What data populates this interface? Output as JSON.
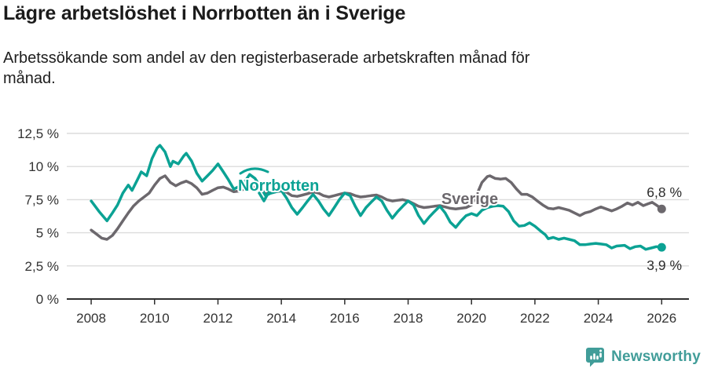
{
  "header": {
    "title": "Lägre arbetslöshet i Norrbotten än i Sverige",
    "subtitle_lines": [
      "Arbetssökande som andel av den registerbaserade arbetskraften månad för",
      "månad."
    ]
  },
  "footer": {
    "brand": "Newsworthy",
    "brand_color": "#419d99",
    "logo_icon": "bar-chart-speech-bubble-icon"
  },
  "colors": {
    "norrbotten": "#0ba294",
    "sverige": "#6c686d",
    "grid": "#dcdcdc",
    "axis": "#2f2f2f",
    "tick_text": "#333333",
    "background": "#ffffff"
  },
  "chart_data": {
    "type": "line",
    "title": "Lägre arbetslöshet i Norrbotten än i Sverige",
    "subtitle": "Arbetssökande som andel av den registerbaserade arbetskraften månad för månad.",
    "unit": "%",
    "xlabel": "",
    "ylabel": "",
    "grid": "horizontal",
    "x_range": [
      2007.23,
      2026.86
    ],
    "y_range": [
      0,
      12.5
    ],
    "y_ticks": {
      "values": [
        0,
        2.5,
        5,
        7.5,
        10,
        12.5
      ],
      "labels": [
        "0 %",
        "2,5 %",
        "5 %",
        "7,5 %",
        "10 %",
        "12,5 %"
      ]
    },
    "x_ticks": {
      "values": [
        2008,
        2010,
        2012,
        2014,
        2016,
        2018,
        2020,
        2022,
        2024,
        2026
      ],
      "labels": [
        "2008",
        "2010",
        "2012",
        "2014",
        "2016",
        "2018",
        "2020",
        "2022",
        "2024",
        "2026"
      ]
    },
    "series": [
      {
        "name": "Sverige",
        "color": "#6c686d",
        "end_label": "6,8 %",
        "end_value": 6.8,
        "points": [
          [
            2008.0,
            5.2
          ],
          [
            2008.17,
            4.9
          ],
          [
            2008.33,
            4.6
          ],
          [
            2008.5,
            4.5
          ],
          [
            2008.67,
            4.8
          ],
          [
            2008.83,
            5.3
          ],
          [
            2009.0,
            5.9
          ],
          [
            2009.17,
            6.5
          ],
          [
            2009.33,
            7.0
          ],
          [
            2009.5,
            7.4
          ],
          [
            2009.67,
            7.7
          ],
          [
            2009.83,
            8.0
          ],
          [
            2010.0,
            8.6
          ],
          [
            2010.17,
            9.1
          ],
          [
            2010.33,
            9.3
          ],
          [
            2010.5,
            8.8
          ],
          [
            2010.67,
            8.55
          ],
          [
            2010.83,
            8.75
          ],
          [
            2011.0,
            8.9
          ],
          [
            2011.17,
            8.7
          ],
          [
            2011.33,
            8.4
          ],
          [
            2011.5,
            7.9
          ],
          [
            2011.67,
            8.0
          ],
          [
            2011.83,
            8.2
          ],
          [
            2012.0,
            8.4
          ],
          [
            2012.17,
            8.45
          ],
          [
            2012.33,
            8.3
          ],
          [
            2012.5,
            8.1
          ],
          [
            2012.67,
            8.15
          ],
          [
            2012.83,
            8.3
          ],
          [
            2013.0,
            8.45
          ],
          [
            2013.17,
            8.4
          ],
          [
            2013.33,
            8.25
          ],
          [
            2013.5,
            8.0
          ],
          [
            2013.67,
            8.0
          ],
          [
            2013.83,
            8.1
          ],
          [
            2014.0,
            8.15
          ],
          [
            2014.17,
            8.05
          ],
          [
            2014.33,
            7.8
          ],
          [
            2014.5,
            7.75
          ],
          [
            2014.67,
            7.85
          ],
          [
            2014.83,
            7.95
          ],
          [
            2015.0,
            8.1
          ],
          [
            2015.17,
            8.0
          ],
          [
            2015.33,
            7.8
          ],
          [
            2015.5,
            7.7
          ],
          [
            2015.67,
            7.8
          ],
          [
            2015.83,
            7.9
          ],
          [
            2016.0,
            8.0
          ],
          [
            2016.17,
            7.95
          ],
          [
            2016.33,
            7.8
          ],
          [
            2016.5,
            7.7
          ],
          [
            2016.67,
            7.75
          ],
          [
            2016.83,
            7.8
          ],
          [
            2017.0,
            7.85
          ],
          [
            2017.17,
            7.7
          ],
          [
            2017.33,
            7.5
          ],
          [
            2017.5,
            7.4
          ],
          [
            2017.67,
            7.45
          ],
          [
            2017.83,
            7.5
          ],
          [
            2018.0,
            7.4
          ],
          [
            2018.17,
            7.2
          ],
          [
            2018.33,
            7.0
          ],
          [
            2018.5,
            6.9
          ],
          [
            2018.67,
            6.95
          ],
          [
            2018.83,
            7.0
          ],
          [
            2019.0,
            7.05
          ],
          [
            2019.17,
            6.95
          ],
          [
            2019.33,
            6.85
          ],
          [
            2019.5,
            6.8
          ],
          [
            2019.67,
            6.85
          ],
          [
            2019.83,
            6.9
          ],
          [
            2020.0,
            7.1
          ],
          [
            2020.17,
            7.9
          ],
          [
            2020.33,
            8.8
          ],
          [
            2020.5,
            9.25
          ],
          [
            2020.58,
            9.3
          ],
          [
            2020.75,
            9.1
          ],
          [
            2020.92,
            9.05
          ],
          [
            2021.08,
            9.1
          ],
          [
            2021.25,
            8.8
          ],
          [
            2021.42,
            8.3
          ],
          [
            2021.58,
            7.9
          ],
          [
            2021.75,
            7.9
          ],
          [
            2021.92,
            7.7
          ],
          [
            2022.08,
            7.4
          ],
          [
            2022.25,
            7.1
          ],
          [
            2022.42,
            6.85
          ],
          [
            2022.58,
            6.8
          ],
          [
            2022.75,
            6.9
          ],
          [
            2022.92,
            6.8
          ],
          [
            2023.08,
            6.7
          ],
          [
            2023.25,
            6.5
          ],
          [
            2023.42,
            6.3
          ],
          [
            2023.58,
            6.5
          ],
          [
            2023.75,
            6.6
          ],
          [
            2023.92,
            6.8
          ],
          [
            2024.08,
            6.95
          ],
          [
            2024.25,
            6.8
          ],
          [
            2024.42,
            6.65
          ],
          [
            2024.58,
            6.8
          ],
          [
            2024.75,
            7.0
          ],
          [
            2024.92,
            7.25
          ],
          [
            2025.08,
            7.1
          ],
          [
            2025.25,
            7.3
          ],
          [
            2025.42,
            7.05
          ],
          [
            2025.58,
            7.2
          ],
          [
            2025.7,
            7.3
          ],
          [
            2025.83,
            7.1
          ],
          [
            2026.0,
            6.8
          ]
        ]
      },
      {
        "name": "Norrbotten",
        "color": "#0ba294",
        "end_label": "3,9 %",
        "end_value": 3.9,
        "points": [
          [
            2008.0,
            7.4
          ],
          [
            2008.08,
            7.15
          ],
          [
            2008.25,
            6.6
          ],
          [
            2008.5,
            5.9
          ],
          [
            2008.67,
            6.5
          ],
          [
            2008.83,
            7.1
          ],
          [
            2009.0,
            8.0
          ],
          [
            2009.17,
            8.6
          ],
          [
            2009.29,
            8.2
          ],
          [
            2009.5,
            9.2
          ],
          [
            2009.58,
            9.6
          ],
          [
            2009.75,
            9.3
          ],
          [
            2009.92,
            10.6
          ],
          [
            2010.08,
            11.4
          ],
          [
            2010.17,
            11.6
          ],
          [
            2010.33,
            11.1
          ],
          [
            2010.5,
            10.0
          ],
          [
            2010.58,
            10.4
          ],
          [
            2010.75,
            10.2
          ],
          [
            2010.92,
            10.8
          ],
          [
            2011.0,
            11.0
          ],
          [
            2011.17,
            10.4
          ],
          [
            2011.33,
            9.5
          ],
          [
            2011.5,
            8.9
          ],
          [
            2011.67,
            9.3
          ],
          [
            2011.83,
            9.7
          ],
          [
            2012.0,
            10.2
          ],
          [
            2012.17,
            9.6
          ],
          [
            2012.33,
            9.0
          ],
          [
            2012.5,
            8.3
          ],
          [
            2012.67,
            8.5
          ],
          [
            2012.83,
            8.8
          ],
          [
            2013.0,
            9.4
          ],
          [
            2013.17,
            9.1
          ],
          [
            2013.33,
            8.5
          ],
          [
            2013.5,
            7.8
          ],
          [
            2013.67,
            8.0
          ],
          [
            2013.83,
            8.1
          ],
          [
            2014.0,
            8.2
          ],
          [
            2014.17,
            7.6
          ],
          [
            2014.33,
            6.9
          ],
          [
            2014.5,
            6.4
          ],
          [
            2014.67,
            6.9
          ],
          [
            2014.83,
            7.4
          ],
          [
            2015.0,
            7.9
          ],
          [
            2015.17,
            7.4
          ],
          [
            2015.33,
            6.8
          ],
          [
            2015.5,
            6.3
          ],
          [
            2015.67,
            6.9
          ],
          [
            2015.83,
            7.5
          ],
          [
            2016.0,
            8.0
          ],
          [
            2016.17,
            7.8
          ],
          [
            2016.33,
            7.0
          ],
          [
            2016.5,
            6.3
          ],
          [
            2016.67,
            6.9
          ],
          [
            2016.83,
            7.3
          ],
          [
            2017.0,
            7.7
          ],
          [
            2017.17,
            7.4
          ],
          [
            2017.33,
            6.7
          ],
          [
            2017.5,
            6.1
          ],
          [
            2017.67,
            6.6
          ],
          [
            2017.83,
            7.0
          ],
          [
            2018.0,
            7.4
          ],
          [
            2018.17,
            7.1
          ],
          [
            2018.33,
            6.3
          ],
          [
            2018.5,
            5.7
          ],
          [
            2018.67,
            6.2
          ],
          [
            2018.83,
            6.6
          ],
          [
            2019.0,
            7.0
          ],
          [
            2019.17,
            6.5
          ],
          [
            2019.33,
            5.8
          ],
          [
            2019.5,
            5.4
          ],
          [
            2019.67,
            5.9
          ],
          [
            2019.83,
            6.3
          ],
          [
            2020.0,
            6.45
          ],
          [
            2020.17,
            6.3
          ],
          [
            2020.33,
            6.7
          ],
          [
            2020.5,
            6.9
          ],
          [
            2020.67,
            7.0
          ],
          [
            2020.83,
            7.05
          ],
          [
            2021.0,
            7.0
          ],
          [
            2021.17,
            6.6
          ],
          [
            2021.33,
            5.9
          ],
          [
            2021.5,
            5.5
          ],
          [
            2021.67,
            5.55
          ],
          [
            2021.83,
            5.75
          ],
          [
            2022.0,
            5.5
          ],
          [
            2022.17,
            5.15
          ],
          [
            2022.33,
            4.85
          ],
          [
            2022.42,
            4.55
          ],
          [
            2022.58,
            4.65
          ],
          [
            2022.75,
            4.5
          ],
          [
            2022.92,
            4.6
          ],
          [
            2023.08,
            4.5
          ],
          [
            2023.25,
            4.4
          ],
          [
            2023.42,
            4.1
          ],
          [
            2023.58,
            4.1
          ],
          [
            2023.75,
            4.15
          ],
          [
            2023.92,
            4.2
          ],
          [
            2024.08,
            4.15
          ],
          [
            2024.25,
            4.1
          ],
          [
            2024.42,
            3.85
          ],
          [
            2024.58,
            4.0
          ],
          [
            2024.83,
            4.05
          ],
          [
            2025.0,
            3.8
          ],
          [
            2025.17,
            3.95
          ],
          [
            2025.33,
            4.0
          ],
          [
            2025.5,
            3.75
          ],
          [
            2025.67,
            3.85
          ],
          [
            2025.83,
            3.95
          ],
          [
            2026.0,
            3.9
          ]
        ]
      }
    ]
  }
}
